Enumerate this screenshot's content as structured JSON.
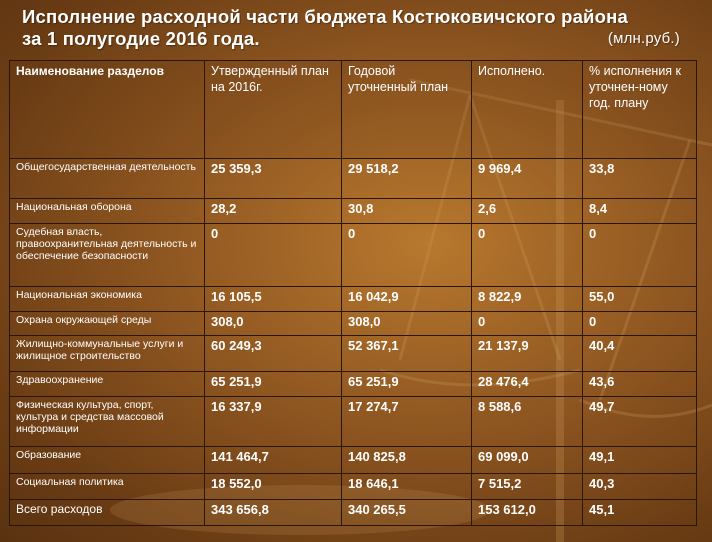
{
  "title_line1": "Исполнение расходной части бюджета Костюковичского района",
  "title_line2": "за  1 полугодие  2016 года.",
  "unit": "(млн.руб.)",
  "headers": [
    "Наименование разделов",
    "Утвержденный план на 2016г.",
    "Годовой уточненный план",
    "Исполнено.",
    "% исполнения к уточнен-ному год. плану"
  ],
  "rows": [
    {
      "name": "Общегосударственная деятельность",
      "plan": "25 359,3",
      "revised": "29 518,2",
      "done": "9 969,4",
      "pct": "33,8"
    },
    {
      "name": "Национальная  оборона",
      "plan": "28,2",
      "revised": "30,8",
      "done": "2,6",
      "pct": "8,4"
    },
    {
      "name": "Судебная  власть, правоохранительная деятельность и обеспечение безопасности",
      "plan": "0",
      "revised": "0",
      "done": "0",
      "pct": "0"
    },
    {
      "name": "Национальная  экономика",
      "plan": "16 105,5",
      "revised": "16 042,9",
      "done": "8 822,9",
      "pct": "55,0"
    },
    {
      "name": "Охрана  окружающей  среды",
      "plan": "308,0",
      "revised": "308,0",
      "done": "0",
      "pct": "0"
    },
    {
      "name": "Жилищно-коммунальные услуги и жилищное  строительство",
      "plan": "60 249,3",
      "revised": "52 367,1",
      "done": "21 137,9",
      "pct": "40,4"
    },
    {
      "name": "Здравоохранение",
      "plan": "65 251,9",
      "revised": "65 251,9",
      "done": "28 476,4",
      "pct": "43,6"
    },
    {
      "name": "Физическая  культура, спорт, культура и  средства массовой информации",
      "plan": "16 337,9",
      "revised": "17 274,7",
      "done": "8 588,6",
      "pct": "49,7"
    },
    {
      "name": "Образование",
      "plan": "141 464,7",
      "revised": "140 825,8",
      "done": "69 099,0",
      "pct": "49,1"
    },
    {
      "name": "Социальная  политика",
      "plan": "18 552,0",
      "revised": "18 646,1",
      "done": "7 515,2",
      "pct": "40,3"
    },
    {
      "name": "Всего  расходов",
      "plan": "343 656,8",
      "revised": "340 265,5",
      "done": "153 612,0",
      "pct": "45,1"
    }
  ]
}
